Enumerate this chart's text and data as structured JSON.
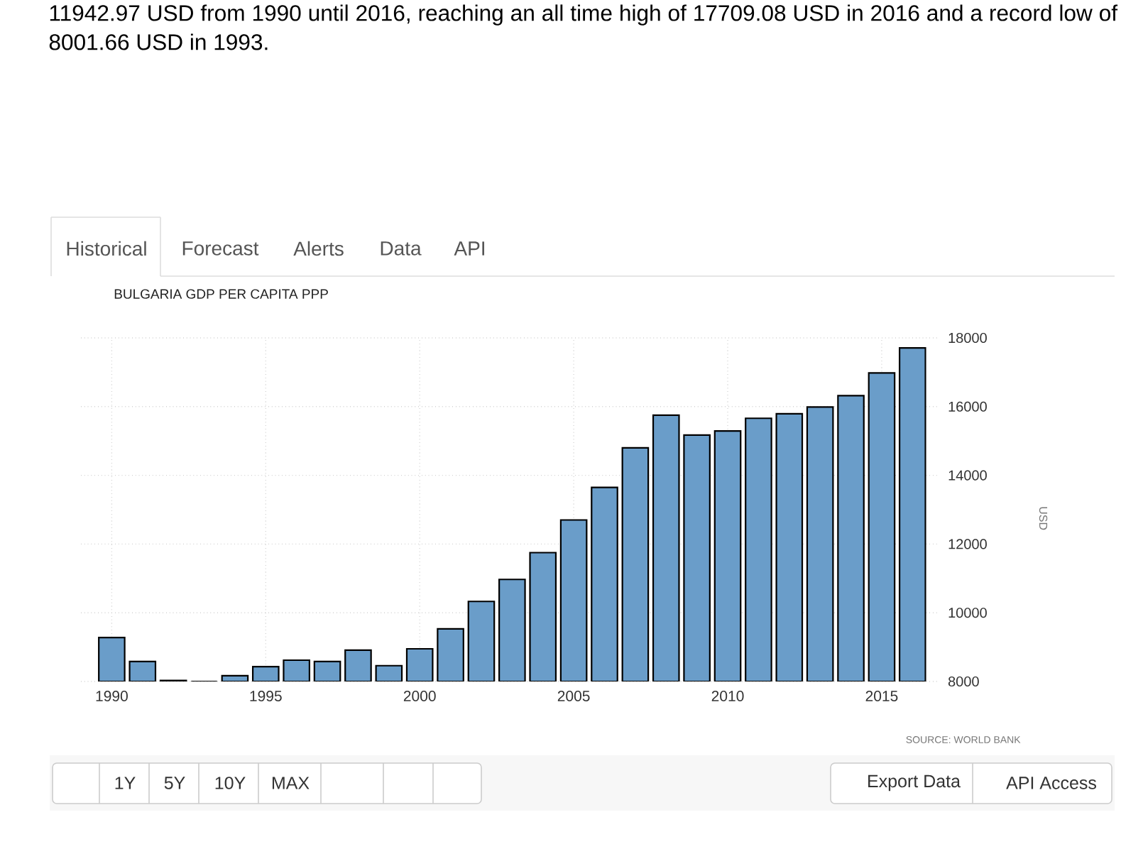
{
  "chart_data": {
    "type": "bar",
    "title": "BULGARIA GDP PER CAPITA PPP",
    "ylabel": "USD",
    "x": [
      1990,
      1991,
      1992,
      1993,
      1994,
      1995,
      1996,
      1997,
      1998,
      1999,
      2000,
      2001,
      2002,
      2003,
      2004,
      2005,
      2006,
      2007,
      2008,
      2009,
      2010,
      2011,
      2012,
      2013,
      2014,
      2015,
      2016
    ],
    "values": [
      9280,
      8580,
      8030,
      8000,
      8170,
      8430,
      8620,
      8580,
      8910,
      8460,
      8950,
      9530,
      10330,
      10970,
      11750,
      12700,
      13650,
      14800,
      15750,
      15170,
      15290,
      15660,
      15790,
      15990,
      16320,
      16980,
      17710
    ],
    "color": "#6a9dc9",
    "xlim": [
      1989,
      2016.8
    ],
    "ylim": [
      8000,
      18000
    ],
    "xticks": [
      1990,
      1995,
      2000,
      2005,
      2010,
      2015
    ],
    "yticks": [
      8000,
      10000,
      12000,
      14000,
      16000,
      18000
    ],
    "grid": true,
    "annotations": [
      "11942.97 USD from 1990 until 2016, reaching an all time high of 17709.08 USD in 2016 and a record low of 8001.66 USD in 1993.",
      "Historical",
      "Forecast",
      "Alerts",
      "Data",
      "API",
      "SOURCE: WORLD BANK",
      "1Y",
      "5Y",
      "10Y",
      "MAX",
      "Export Data",
      "API Access"
    ]
  }
}
